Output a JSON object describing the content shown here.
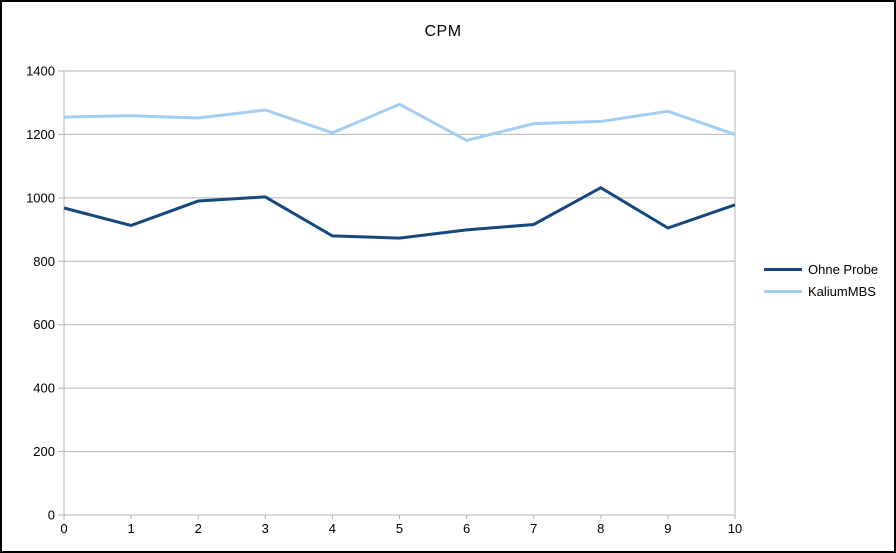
{
  "window": {
    "background": "#ffffff",
    "frame_border_color": "#000000"
  },
  "chart_data": {
    "type": "line",
    "title": "CPM",
    "xlabel": "",
    "ylabel": "",
    "xlim": [
      0,
      10
    ],
    "ylim": [
      0,
      1400
    ],
    "grid": true,
    "legend_position": "right",
    "axis_color": "#b3b3b3",
    "label_color": "#000000",
    "x": [
      0,
      1,
      2,
      3,
      4,
      5,
      6,
      7,
      8,
      9,
      10
    ],
    "x_tick_labels": [
      "0",
      "1",
      "2",
      "3",
      "4",
      "5",
      "6",
      "7",
      "8",
      "9",
      "10"
    ],
    "y_ticks": [
      0,
      200,
      400,
      600,
      800,
      1000,
      1200,
      1400
    ],
    "series": [
      {
        "name": "Ohne Probe",
        "color": "#17487D",
        "values": [
          968,
          913,
          990,
          1003,
          880,
          873,
          899,
          916,
          1032,
          905,
          978
        ]
      },
      {
        "name": "KaliumMBS",
        "color": "#A3CDF2",
        "values": [
          1255,
          1259,
          1252,
          1277,
          1205,
          1295,
          1181,
          1234,
          1241,
          1273,
          1200
        ]
      }
    ]
  }
}
